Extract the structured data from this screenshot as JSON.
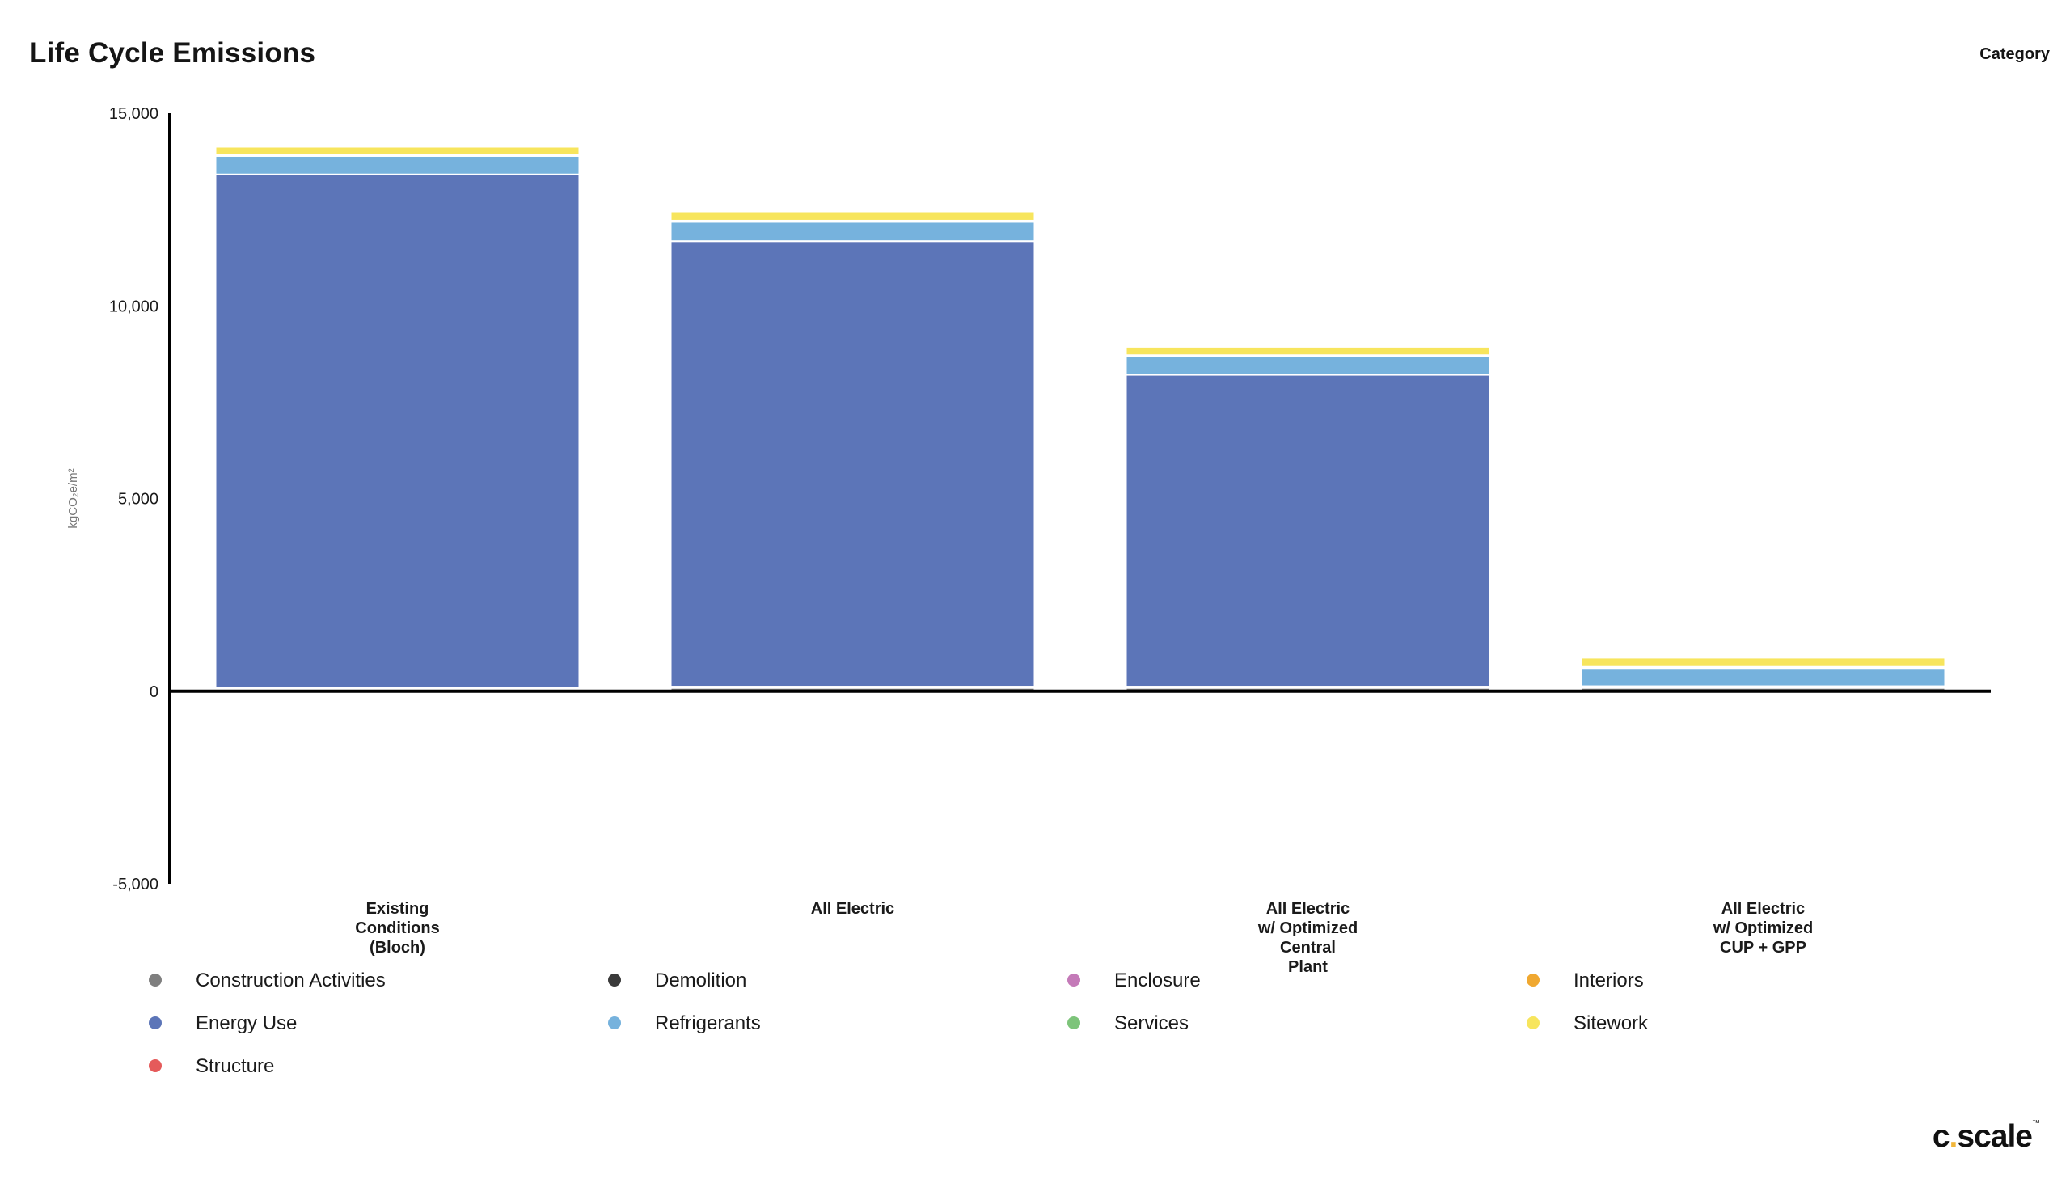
{
  "title": "Life Cycle Emissions",
  "category_label": "Category",
  "logo": {
    "text_c": "c",
    "text_dot": ".",
    "text_rest": "scale",
    "trademark": "™"
  },
  "chart_data": {
    "type": "bar",
    "stacked": true,
    "title": "Life Cycle Emissions",
    "xlabel": "",
    "ylabel": "kgCO₂e/m²",
    "ylim": [
      -5000,
      15000
    ],
    "yticks": [
      -5000,
      0,
      5000,
      10000,
      15000
    ],
    "ytick_labels": [
      "-5,000",
      "0",
      "5,000",
      "10,000",
      "15,000"
    ],
    "grid": false,
    "legend_position": "bottom",
    "categories": [
      "Existing\nConditions\n(Bloch)",
      "All Electric",
      "All Electric\nw/ Optimized\nCentral\nPlant",
      "All Electric\nw/ Optimized\nCUP + GPP"
    ],
    "series": [
      {
        "name": "Construction Activities",
        "color": "#7f7f7f",
        "values": [
          20,
          25,
          25,
          25
        ]
      },
      {
        "name": "Demolition",
        "color": "#3a3a3a",
        "values": [
          40,
          60,
          60,
          60
        ]
      },
      {
        "name": "Enclosure",
        "color": "#c47ab8",
        "values": [
          15,
          25,
          25,
          25
        ]
      },
      {
        "name": "Interiors",
        "color": "#f0a830",
        "values": [
          5,
          10,
          10,
          10
        ]
      },
      {
        "name": "Energy Use",
        "color": "#5c75b8",
        "values": [
          13330,
          11560,
          8090,
          10
        ]
      },
      {
        "name": "Refrigerants",
        "color": "#76b2dd",
        "values": [
          480,
          500,
          480,
          470
        ]
      },
      {
        "name": "Services",
        "color": "#7dc47a",
        "values": [
          20,
          30,
          30,
          30
        ]
      },
      {
        "name": "Sitework",
        "color": "#f7e55d",
        "values": [
          220,
          240,
          220,
          240
        ]
      },
      {
        "name": "Structure",
        "color": "#e55a5a",
        "values": [
          30,
          30,
          30,
          30
        ]
      }
    ],
    "legend_order": [
      "Construction Activities",
      "Demolition",
      "Enclosure",
      "Interiors",
      "Energy Use",
      "Refrigerants",
      "Services",
      "Sitework",
      "Structure"
    ]
  }
}
